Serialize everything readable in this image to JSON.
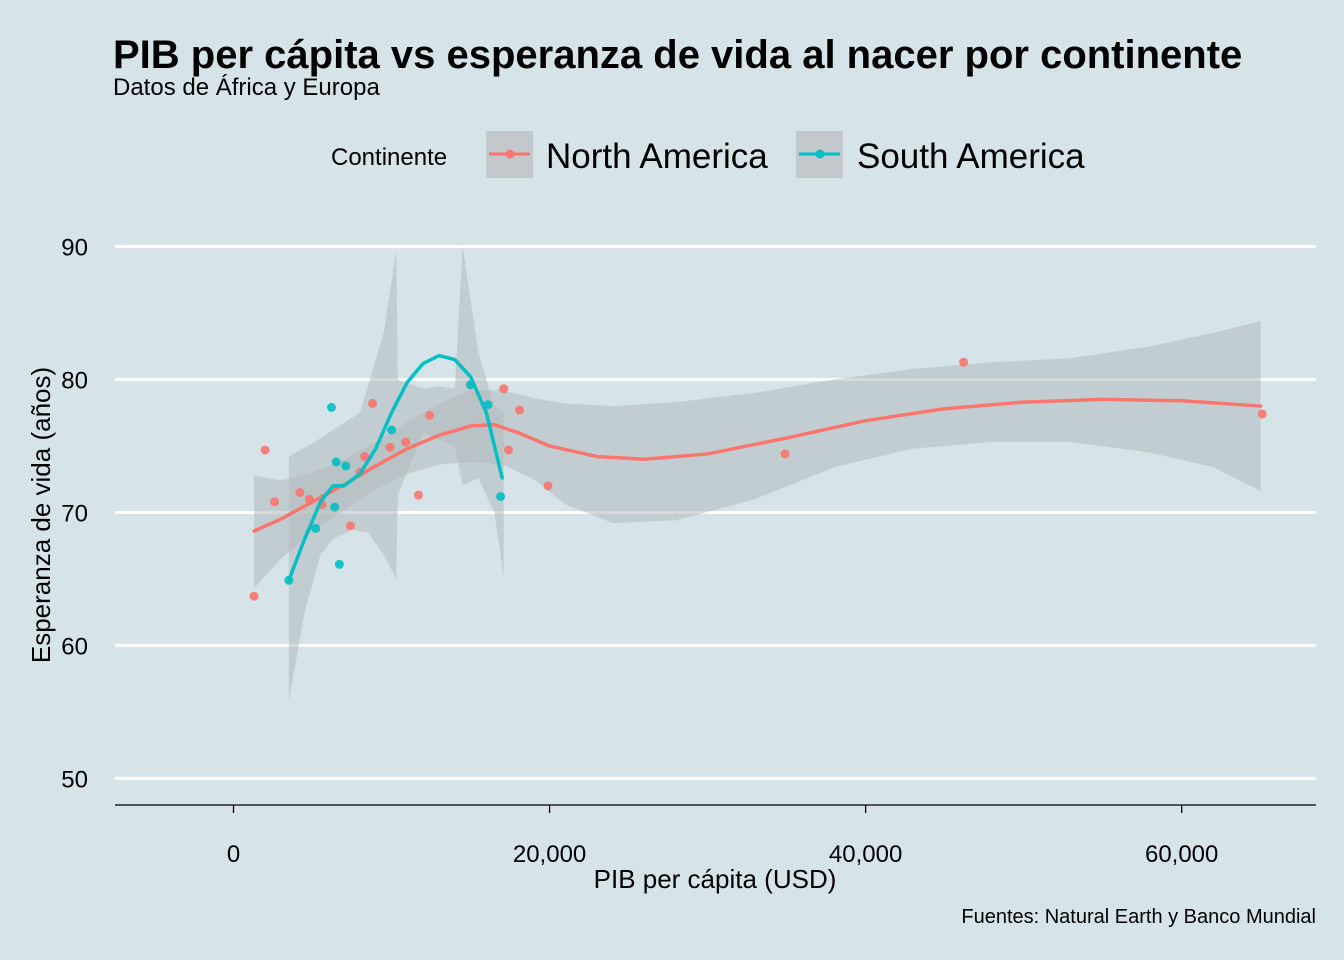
{
  "colors": {
    "background": "#d6e4ea",
    "grid": "#ffffff",
    "ribbon": "#b3b9bc",
    "legend_key_bg": "#c2c8cb",
    "north_america": "#f8766d",
    "south_america": "#00bfc4"
  },
  "chart_data": {
    "type": "scatter",
    "title": "PIB per cápita vs esperanza de vida al nacer por continente",
    "subtitle": "Datos de África y Europa",
    "xlabel": "PIB per cápita  (USD)",
    "ylabel": "Esperanza de vida (años)",
    "caption": "Fuentes: Natural Earth y Banco Mundial",
    "xlim": [
      -7500,
      68500
    ],
    "ylim": [
      48,
      95
    ],
    "x_ticks": [
      0,
      20000,
      40000,
      60000
    ],
    "x_tick_labels": [
      "0",
      "20,000",
      "40,000",
      "60,000"
    ],
    "y_ticks": [
      50,
      60,
      70,
      80,
      90
    ],
    "y_tick_labels": [
      "50",
      "60",
      "70",
      "80",
      "90"
    ],
    "grid": "horizontal major lines only",
    "legend": {
      "title": "Continente",
      "position": "top",
      "entries": [
        "North America",
        "South America"
      ]
    },
    "series": [
      {
        "name": "North America",
        "color": "#f8766d",
        "points": [
          [
            1300,
            63.7
          ],
          [
            2000,
            74.7
          ],
          [
            2600,
            70.8
          ],
          [
            4200,
            71.5
          ],
          [
            4800,
            71.0
          ],
          [
            5600,
            70.6
          ],
          [
            7400,
            69.0
          ],
          [
            8000,
            73.0
          ],
          [
            8300,
            74.2
          ],
          [
            8800,
            78.2
          ],
          [
            9900,
            74.9
          ],
          [
            10900,
            75.3
          ],
          [
            11700,
            71.3
          ],
          [
            12400,
            77.3
          ],
          [
            15000,
            79.6
          ],
          [
            17100,
            79.3
          ],
          [
            17400,
            74.7
          ],
          [
            18100,
            77.7
          ],
          [
            19900,
            72.0
          ],
          [
            34900,
            74.4
          ],
          [
            46200,
            81.3
          ],
          [
            65100,
            77.4
          ]
        ],
        "smooth": [
          [
            1300,
            68.6
          ],
          [
            3000,
            69.5
          ],
          [
            5000,
            70.8
          ],
          [
            7000,
            72.1
          ],
          [
            9000,
            73.5
          ],
          [
            11000,
            74.8
          ],
          [
            13000,
            75.8
          ],
          [
            15000,
            76.5
          ],
          [
            16500,
            76.6
          ],
          [
            18000,
            76.0
          ],
          [
            20000,
            75.0
          ],
          [
            23000,
            74.2
          ],
          [
            26000,
            74.0
          ],
          [
            30000,
            74.4
          ],
          [
            35000,
            75.6
          ],
          [
            40000,
            76.9
          ],
          [
            45000,
            77.8
          ],
          [
            50000,
            78.3
          ],
          [
            55000,
            78.5
          ],
          [
            60000,
            78.4
          ],
          [
            65000,
            78.0
          ]
        ],
        "ci_upper": [
          [
            1300,
            72.8
          ],
          [
            3000,
            72.4
          ],
          [
            5000,
            73.0
          ],
          [
            7000,
            74.0
          ],
          [
            9000,
            75.3
          ],
          [
            11000,
            76.8
          ],
          [
            13000,
            78.2
          ],
          [
            15000,
            79.2
          ],
          [
            17000,
            79.2
          ],
          [
            19000,
            78.6
          ],
          [
            21000,
            78.2
          ],
          [
            24000,
            78.0
          ],
          [
            28000,
            78.3
          ],
          [
            33000,
            79.0
          ],
          [
            38000,
            80.0
          ],
          [
            43000,
            80.8
          ],
          [
            48000,
            81.3
          ],
          [
            53000,
            81.6
          ],
          [
            58000,
            82.5
          ],
          [
            62000,
            83.5
          ],
          [
            65000,
            84.4
          ]
        ],
        "ci_lower": [
          [
            1300,
            64.3
          ],
          [
            3000,
            66.5
          ],
          [
            5000,
            68.6
          ],
          [
            7000,
            70.2
          ],
          [
            9000,
            71.7
          ],
          [
            11000,
            72.9
          ],
          [
            13000,
            73.6
          ],
          [
            15000,
            73.8
          ],
          [
            17000,
            73.6
          ],
          [
            19000,
            72.5
          ],
          [
            21000,
            70.6
          ],
          [
            24000,
            69.2
          ],
          [
            28000,
            69.4
          ],
          [
            33000,
            71.0
          ],
          [
            38000,
            73.4
          ],
          [
            43000,
            74.8
          ],
          [
            48000,
            75.3
          ],
          [
            53000,
            75.3
          ],
          [
            58000,
            74.5
          ],
          [
            62000,
            73.4
          ],
          [
            65000,
            71.6
          ]
        ]
      },
      {
        "name": "South America",
        "color": "#00bfc4",
        "points": [
          [
            3500,
            64.9
          ],
          [
            5200,
            68.8
          ],
          [
            6200,
            77.9
          ],
          [
            6400,
            70.4
          ],
          [
            6500,
            73.8
          ],
          [
            6700,
            66.1
          ],
          [
            7100,
            73.5
          ],
          [
            10000,
            76.2
          ],
          [
            15000,
            79.6
          ],
          [
            16100,
            78.1
          ],
          [
            16900,
            71.2
          ]
        ],
        "smooth": [
          [
            3500,
            64.9
          ],
          [
            4500,
            68.0
          ],
          [
            5500,
            70.8
          ],
          [
            6300,
            72.0
          ],
          [
            7000,
            72.0
          ],
          [
            8000,
            72.9
          ],
          [
            9000,
            74.8
          ],
          [
            10000,
            77.5
          ],
          [
            11000,
            79.8
          ],
          [
            12000,
            81.2
          ],
          [
            13000,
            81.8
          ],
          [
            14000,
            81.5
          ],
          [
            15000,
            80.2
          ],
          [
            16000,
            77.5
          ],
          [
            17000,
            72.6
          ]
        ],
        "ci_upper": [
          [
            3500,
            74.2
          ],
          [
            5000,
            75.2
          ],
          [
            6300,
            76.2
          ],
          [
            8000,
            77.5
          ],
          [
            9500,
            83.5
          ],
          [
            10300,
            89.7
          ],
          [
            10400,
            80.0
          ],
          [
            12000,
            79.3
          ],
          [
            13000,
            79.5
          ],
          [
            14000,
            79.3
          ],
          [
            14500,
            90.0
          ],
          [
            15500,
            82.0
          ],
          [
            16500,
            78.0
          ],
          [
            17100,
            77.5
          ]
        ],
        "ci_lower": [
          [
            3500,
            55.8
          ],
          [
            4500,
            62.5
          ],
          [
            5500,
            66.8
          ],
          [
            6300,
            68.0
          ],
          [
            7500,
            68.7
          ],
          [
            8500,
            68.5
          ],
          [
            9500,
            66.8
          ],
          [
            10300,
            65.0
          ],
          [
            10400,
            71.3
          ],
          [
            12000,
            76.0
          ],
          [
            14000,
            75.0
          ],
          [
            14500,
            72.0
          ],
          [
            15500,
            72.6
          ],
          [
            16500,
            70.0
          ],
          [
            17100,
            65.2
          ]
        ]
      }
    ]
  }
}
